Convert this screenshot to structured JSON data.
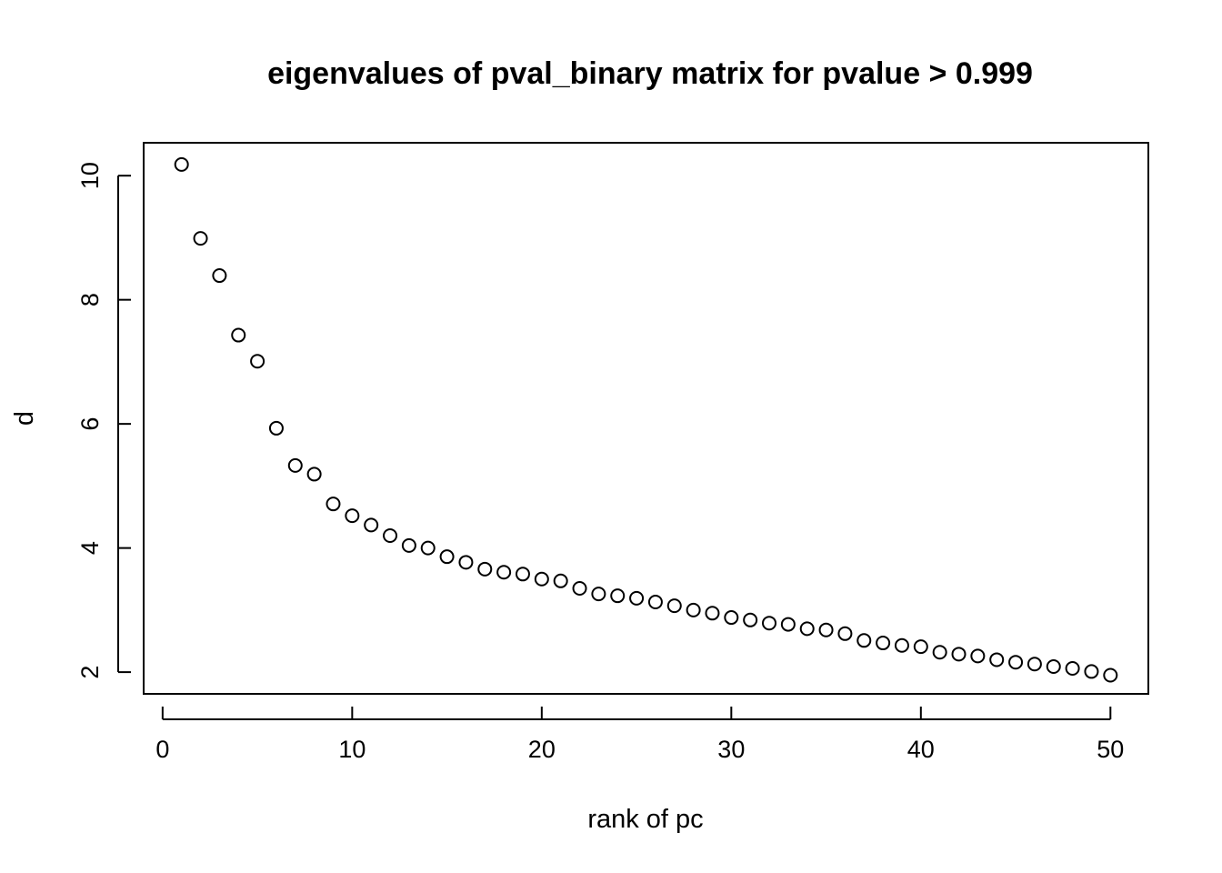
{
  "chart_data": {
    "type": "scatter",
    "title": "eigenvalues of pval_binary matrix for pvalue > 0.999",
    "xlabel": "rank of pc",
    "ylabel": "d",
    "xlim": [
      -1,
      52
    ],
    "ylim": [
      1.65,
      10.53
    ],
    "xticks": [
      0,
      10,
      20,
      30,
      40,
      50
    ],
    "yticks": [
      2,
      4,
      6,
      8,
      10
    ],
    "grid": false,
    "marker": "open-circle",
    "x": [
      1,
      2,
      3,
      4,
      5,
      6,
      7,
      8,
      9,
      10,
      11,
      12,
      13,
      14,
      15,
      16,
      17,
      18,
      19,
      20,
      21,
      22,
      23,
      24,
      25,
      26,
      27,
      28,
      29,
      30,
      31,
      32,
      33,
      34,
      35,
      36,
      37,
      38,
      39,
      40,
      41,
      42,
      43,
      44,
      45,
      46,
      47,
      48,
      49,
      50
    ],
    "y": [
      10.18,
      8.99,
      8.39,
      7.43,
      7.01,
      5.93,
      5.33,
      5.19,
      4.71,
      4.52,
      4.37,
      4.2,
      4.04,
      4.0,
      3.86,
      3.77,
      3.66,
      3.61,
      3.58,
      3.5,
      3.47,
      3.35,
      3.26,
      3.23,
      3.19,
      3.13,
      3.07,
      3.0,
      2.95,
      2.88,
      2.84,
      2.79,
      2.77,
      2.7,
      2.68,
      2.62,
      2.51,
      2.47,
      2.43,
      2.41,
      2.32,
      2.29,
      2.26,
      2.2,
      2.16,
      2.13,
      2.09,
      2.06,
      2.01,
      1.95
    ]
  }
}
